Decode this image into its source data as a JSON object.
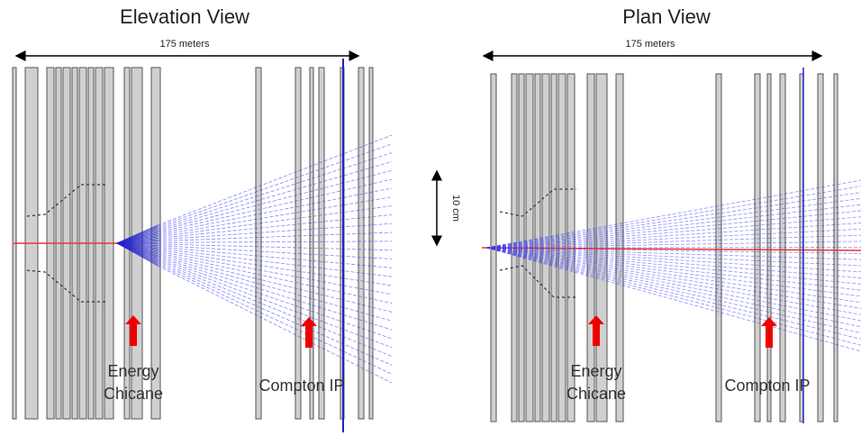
{
  "panels": [
    {
      "title": "Elevation View",
      "scale_label": "175 meters",
      "labels": [
        {
          "lines": [
            "Energy",
            "Chicane"
          ]
        },
        {
          "lines": [
            "Compton IP"
          ]
        }
      ]
    },
    {
      "title": "Plan View",
      "scale_label": "175 meters",
      "labels": [
        {
          "lines": [
            "Energy",
            "Chicane"
          ]
        },
        {
          "lines": [
            "Compton IP"
          ]
        }
      ]
    }
  ],
  "vertical_scale": "10 cm"
}
